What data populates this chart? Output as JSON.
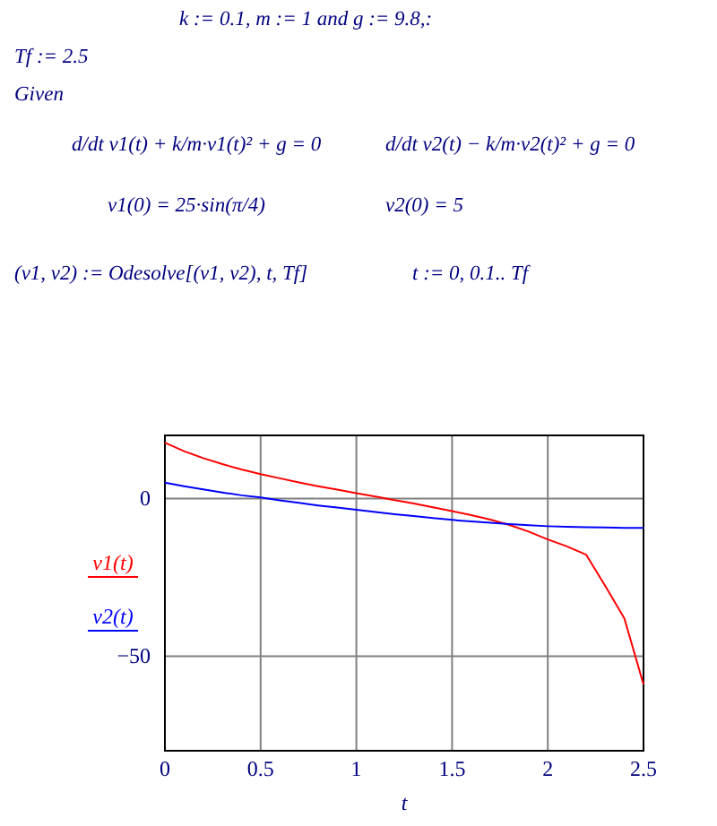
{
  "chart_data": {
    "type": "line",
    "xlabel": "t",
    "annotations": [
      "k := 0.1, m := 1 and g := 9.8,:",
      "Tf := 2.5",
      "Given",
      "d/dt v1(t) + k/m·v1(t)² + g = 0",
      "d/dt v2(t) − k/m·v2(t)² + g = 0",
      "v1(0) = 25·sin(π/4)",
      "v2(0) = 5",
      "(v1, v2) := Odesolve[(v1, v2), t, Tf]",
      "t := 0, 0.1.. Tf"
    ],
    "x": [
      0,
      0.1,
      0.2,
      0.3,
      0.4,
      0.5,
      0.6,
      0.7,
      0.8,
      0.9,
      1,
      1.1,
      1.2,
      1.3,
      1.4,
      1.5,
      1.6,
      1.7,
      1.8,
      1.9,
      2,
      2.1,
      2.2,
      2.3,
      2.4,
      2.5
    ],
    "series": [
      {
        "name": "v1(t)",
        "color": "#ff0000",
        "values": [
          17.7,
          15,
          12.8,
          10.9,
          9.2,
          7.7,
          6.4,
          5.1,
          3.9,
          2.8,
          1.7,
          0.6,
          -0.5,
          -1.6,
          -2.8,
          -4,
          -5.3,
          -6.7,
          -8.4,
          -10.5,
          -13,
          -15.2,
          -17.8,
          -27.7,
          -38,
          -59
        ]
      },
      {
        "name": "v2(t)",
        "color": "#0000ff",
        "values": [
          5,
          3.9,
          2.9,
          1.9,
          1,
          0.3,
          -0.6,
          -1.4,
          -2.2,
          -2.9,
          -3.6,
          -4.3,
          -5,
          -5.6,
          -6.2,
          -6.8,
          -7.3,
          -7.7,
          -8.1,
          -8.5,
          -8.8,
          -9,
          -9.1,
          -9.2,
          -9.3,
          -9.3
        ]
      }
    ],
    "xlim": [
      0,
      2.5
    ],
    "ylim": [
      -80,
      20
    ],
    "xticks": [
      0,
      0.5,
      1,
      1.5,
      2,
      2.5
    ],
    "yticks": [
      {
        "value": -50,
        "label": "−50"
      },
      0
    ],
    "grid": true,
    "legend": "left"
  }
}
